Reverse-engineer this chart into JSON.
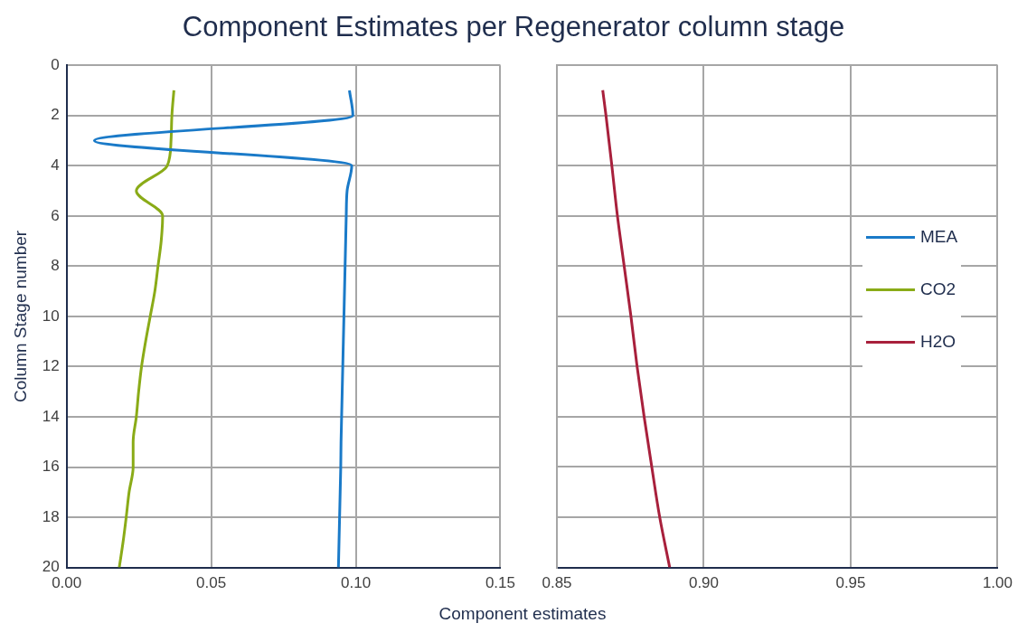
{
  "chart_data": [
    {
      "type": "line",
      "title": "Component Estimates per Regenerator column stage",
      "xlabel": "Component estimates",
      "ylabel": "Column Stage number",
      "orientation": "horizontal",
      "x": [
        1,
        2,
        3,
        4,
        5,
        6,
        7,
        8,
        9,
        10,
        11,
        12,
        13,
        14,
        15,
        16,
        17,
        18,
        19,
        20
      ],
      "series": [
        {
          "name": "MEA",
          "color": "#1a7ac8",
          "values": [
            0.0978,
            0.099,
            0.0096,
            0.0986,
            0.097,
            0.0967,
            0.0965,
            0.0963,
            0.0961,
            0.0959,
            0.0957,
            0.0955,
            0.0953,
            0.0951,
            0.0949,
            0.0948,
            0.0946,
            0.0944,
            0.0942,
            0.094
          ]
        },
        {
          "name": "CO2",
          "color": "#8aab17",
          "values": [
            0.0371,
            0.0364,
            0.0361,
            0.0348,
            0.0241,
            0.0332,
            0.0327,
            0.0316,
            0.0305,
            0.0289,
            0.0273,
            0.0259,
            0.0249,
            0.0241,
            0.023,
            0.023,
            0.0216,
            0.0206,
            0.0195,
            0.0182
          ]
        }
      ],
      "xlim": [
        0,
        0.15
      ],
      "xticks": [
        {
          "value": 0,
          "label": "0.00"
        },
        {
          "value": 0.05,
          "label": "0.05"
        },
        {
          "value": 0.1,
          "label": "0.10"
        },
        {
          "value": 0.15,
          "label": "0.15"
        }
      ],
      "ylim": [
        20,
        0
      ],
      "yticks": [
        0,
        2,
        4,
        6,
        8,
        10,
        12,
        14,
        16,
        18,
        20
      ],
      "grid": true,
      "legend": "right",
      "marker": "none"
    },
    {
      "type": "line",
      "orientation": "horizontal",
      "series": [
        {
          "name": "H2O",
          "color": "#a8203c",
          "x": [
            1,
            2,
            4,
            6,
            8,
            10,
            12,
            14,
            16,
            18,
            20
          ],
          "values": [
            0.8656,
            0.8667,
            0.8687,
            0.8706,
            0.8729,
            0.8752,
            0.8773,
            0.8797,
            0.8823,
            0.885,
            0.8884
          ]
        }
      ],
      "xlim": [
        0.85,
        1
      ],
      "xticks": [
        {
          "value": 0.85,
          "label": "0.85"
        },
        {
          "value": 0.9,
          "label": "0.90"
        },
        {
          "value": 0.95,
          "label": "0.95"
        },
        {
          "value": 1,
          "label": "1.00"
        }
      ],
      "ylim": [
        20,
        0
      ],
      "yticks": [
        0,
        2,
        4,
        6,
        8,
        10,
        12,
        14,
        16,
        18,
        20
      ],
      "grid": true,
      "legend": "right",
      "marker": "none",
      "tick_labels": "x"
    }
  ]
}
